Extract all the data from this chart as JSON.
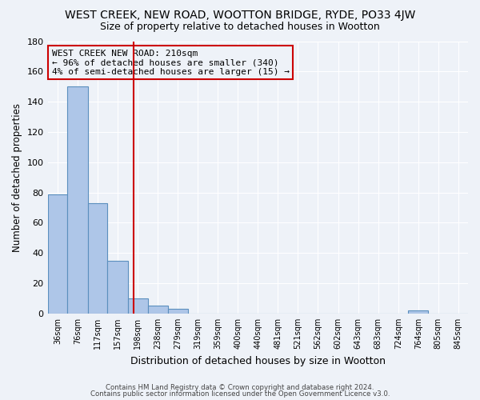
{
  "title": "WEST CREEK, NEW ROAD, WOOTTON BRIDGE, RYDE, PO33 4JW",
  "subtitle": "Size of property relative to detached houses in Wootton",
  "xlabel": "Distribution of detached houses by size in Wootton",
  "ylabel": "Number of detached properties",
  "bar_edges": [
    36,
    76,
    117,
    157,
    198,
    238,
    279,
    319,
    359,
    400,
    440,
    481,
    521,
    562,
    602,
    643,
    683,
    724,
    764,
    805,
    845
  ],
  "bar_heights": [
    79,
    150,
    73,
    35,
    10,
    5,
    3,
    0,
    0,
    0,
    0,
    0,
    0,
    0,
    0,
    0,
    0,
    0,
    2,
    0,
    0
  ],
  "bar_color": "#aec6e8",
  "bar_edge_color": "#5b8fbe",
  "vline_x": 210,
  "vline_color": "#cc0000",
  "annotation_title": "WEST CREEK NEW ROAD: 210sqm",
  "annotation_line1": "← 96% of detached houses are smaller (340)",
  "annotation_line2": "4% of semi-detached houses are larger (15) →",
  "annotation_box_color": "#cc0000",
  "ylim": [
    0,
    180
  ],
  "yticks": [
    0,
    20,
    40,
    60,
    80,
    100,
    120,
    140,
    160,
    180
  ],
  "tick_labels": [
    "36sqm",
    "76sqm",
    "117sqm",
    "157sqm",
    "198sqm",
    "238sqm",
    "279sqm",
    "319sqm",
    "359sqm",
    "400sqm",
    "440sqm",
    "481sqm",
    "521sqm",
    "562sqm",
    "602sqm",
    "643sqm",
    "683sqm",
    "724sqm",
    "764sqm",
    "805sqm",
    "845sqm"
  ],
  "footnote1": "Contains HM Land Registry data © Crown copyright and database right 2024.",
  "footnote2": "Contains public sector information licensed under the Open Government Licence v3.0.",
  "bg_color": "#eef2f8",
  "grid_color": "#ffffff",
  "title_fontsize": 10,
  "subtitle_fontsize": 9
}
